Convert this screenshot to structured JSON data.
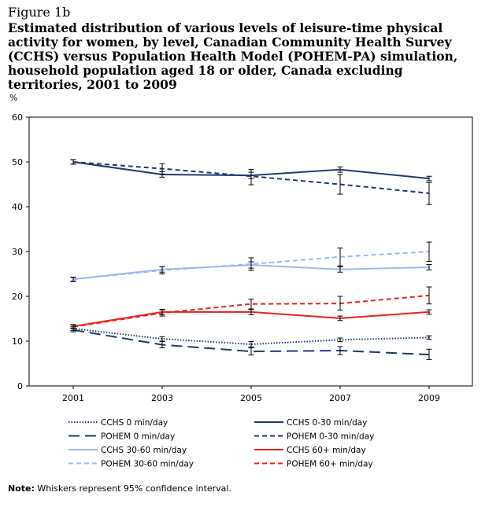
{
  "figure": {
    "label": "Figure 1b",
    "title": "Estimated distribution of various levels of leisure-time physical activity for women, by level, Canadian Community Health Survey (CCHS) versus Population Health Model (POHEM-PA) simulation, household population aged 18 or older, Canada excluding territories, 2001 to 2009"
  },
  "note": {
    "label": "Note:",
    "text": " Whiskers represent 95% confidence interval."
  },
  "chart_data": {
    "type": "line",
    "ylabel": "%",
    "xlabel": "",
    "x": [
      "2001",
      "2003",
      "2005",
      "2007",
      "2009"
    ],
    "ylim": [
      0,
      60
    ],
    "yticks": [
      0,
      10,
      20,
      30,
      40,
      50,
      60
    ],
    "grid": false,
    "legend_position": "bottom",
    "series": [
      {
        "name": "CCHS 0 min/day",
        "values": [
          12.8,
          10.5,
          9.3,
          10.3,
          10.8
        ],
        "color": "#1f3a6e",
        "style": "dotted",
        "ci": [
          [
            12.4,
            13.2
          ],
          [
            10.0,
            11.0
          ],
          [
            8.7,
            9.9
          ],
          [
            9.9,
            10.7
          ],
          [
            10.4,
            11.2
          ]
        ]
      },
      {
        "name": "CCHS 0-30 min/day",
        "values": [
          50.0,
          47.2,
          47.0,
          48.3,
          46.3
        ],
        "color": "#1f3a6e",
        "style": "solid",
        "ci": [
          [
            49.5,
            50.5
          ],
          [
            46.6,
            47.8
          ],
          [
            46.3,
            47.7
          ],
          [
            47.7,
            48.9
          ],
          [
            45.8,
            46.8
          ]
        ]
      },
      {
        "name": "POHEM 0 min/day",
        "values": [
          12.5,
          9.2,
          7.7,
          7.9,
          7.0
        ],
        "color": "#1f3a6e",
        "style": "longdash",
        "ci": [
          [
            12.1,
            12.9
          ],
          [
            8.5,
            9.9
          ],
          [
            6.9,
            8.5
          ],
          [
            7.0,
            8.8
          ],
          [
            5.9,
            8.2
          ]
        ]
      },
      {
        "name": "POHEM 0-30 min/day",
        "values": [
          50.0,
          48.5,
          46.8,
          45.0,
          43.0
        ],
        "color": "#1f3a6e",
        "style": "dashed",
        "ci": [
          [
            49.5,
            50.5
          ],
          [
            47.3,
            49.6
          ],
          [
            44.9,
            48.3
          ],
          [
            42.8,
            47.2
          ],
          [
            40.5,
            45.4
          ]
        ]
      },
      {
        "name": "CCHS 30-60 min/day",
        "values": [
          23.8,
          26.0,
          27.0,
          26.0,
          26.5
        ],
        "color": "#9ab9e8",
        "style": "solid",
        "ci": [
          [
            23.3,
            24.3
          ],
          [
            25.4,
            26.6
          ],
          [
            26.3,
            27.7
          ],
          [
            25.4,
            26.6
          ],
          [
            25.9,
            27.1
          ]
        ]
      },
      {
        "name": "CCHS 60+ min/day",
        "values": [
          13.3,
          16.5,
          16.5,
          15.1,
          16.5
        ],
        "color": "#e8221b",
        "style": "solid",
        "ci": [
          [
            12.9,
            13.7
          ],
          [
            15.9,
            17.1
          ],
          [
            15.9,
            17.1
          ],
          [
            14.6,
            15.6
          ],
          [
            16.0,
            17.0
          ]
        ]
      },
      {
        "name": "POHEM 30-60 min/day",
        "values": [
          23.8,
          25.8,
          27.2,
          28.8,
          30.0
        ],
        "color": "#9ab9e8",
        "style": "dashed",
        "ci": [
          [
            23.4,
            24.2
          ],
          [
            25.0,
            26.6
          ],
          [
            25.8,
            28.6
          ],
          [
            26.8,
            30.8
          ],
          [
            27.8,
            32.1
          ]
        ]
      },
      {
        "name": "POHEM 60+ min/day",
        "values": [
          13.2,
          16.3,
          18.3,
          18.4,
          20.2
        ],
        "color": "#e8221b",
        "style": "dashed",
        "ci": [
          [
            12.8,
            13.6
          ],
          [
            15.6,
            17.0
          ],
          [
            17.2,
            19.4
          ],
          [
            16.9,
            20.0
          ],
          [
            18.3,
            22.1
          ]
        ]
      }
    ]
  }
}
